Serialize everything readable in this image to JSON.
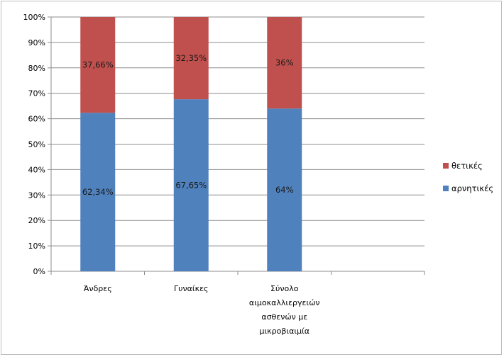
{
  "chart_data": {
    "type": "bar",
    "stacked": true,
    "categories": [
      [
        "Άνδρες"
      ],
      [
        "Γυναίκες"
      ],
      [
        "Σύνολο",
        "αιμοκαλλιεργειών",
        "ασθενών με",
        "μικροβιαιμία"
      ]
    ],
    "series": [
      {
        "name": "αρνητικές",
        "color": "#4f81bd",
        "values": [
          62.34,
          67.65,
          64
        ],
        "labels": [
          "62,34%",
          "67,65%",
          "64%"
        ]
      },
      {
        "name": "θετικές",
        "color": "#c0504d",
        "values": [
          37.66,
          32.35,
          36
        ],
        "labels": [
          "37,66%",
          "32,35%",
          "36%"
        ]
      }
    ],
    "yticks": [
      "0%",
      "10%",
      "20%",
      "30%",
      "40%",
      "50%",
      "60%",
      "70%",
      "80%",
      "90%",
      "100%"
    ],
    "ylim": [
      0,
      100
    ],
    "grid": true,
    "legend_position": "right",
    "legend_order": [
      "θετικές",
      "αρνητικές"
    ],
    "empty_category_slots": 1
  }
}
